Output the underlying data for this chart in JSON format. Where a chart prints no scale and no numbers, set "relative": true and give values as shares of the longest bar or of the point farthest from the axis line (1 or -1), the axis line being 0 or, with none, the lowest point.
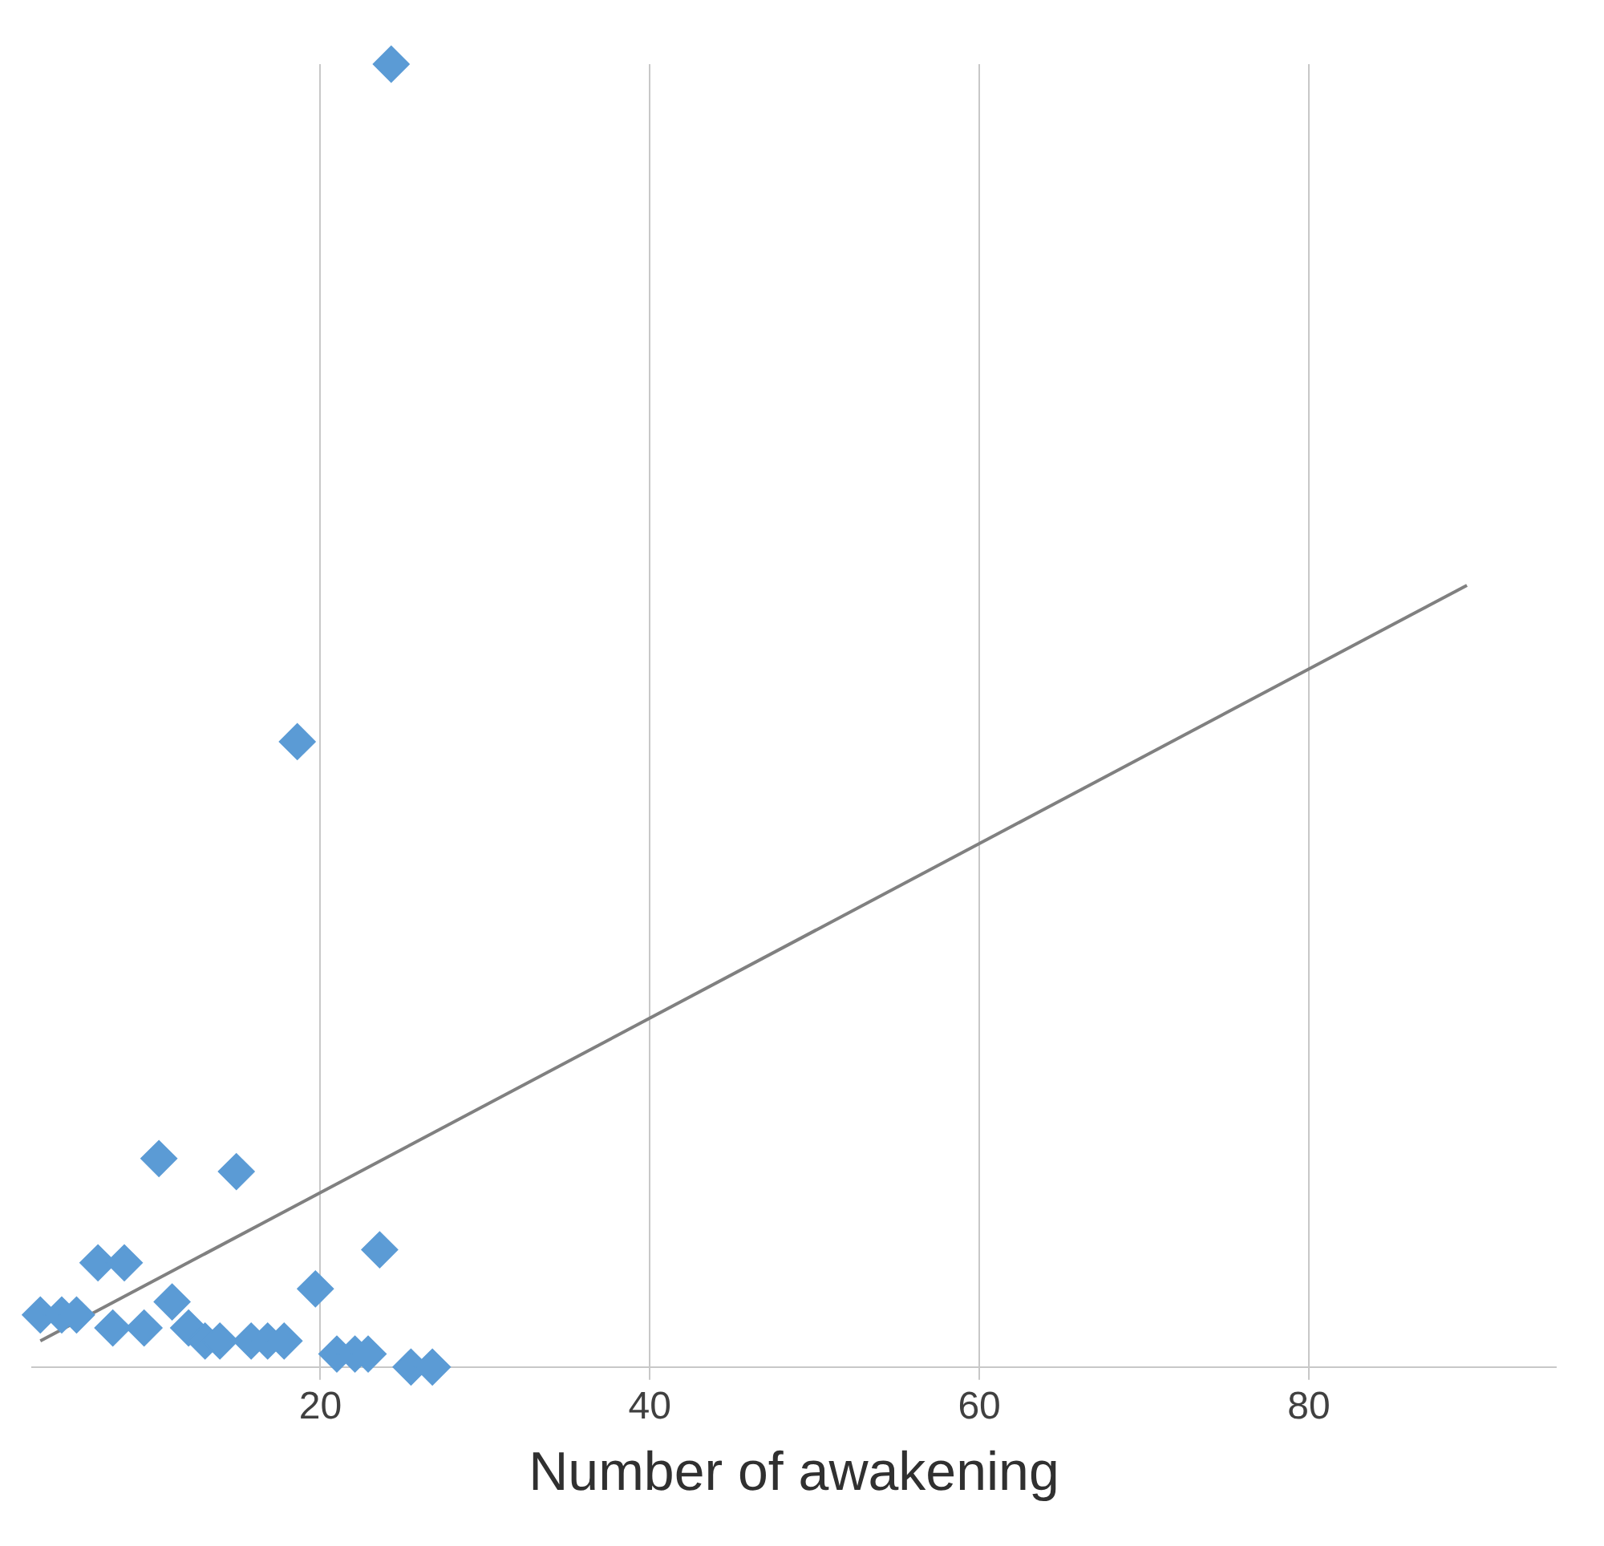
{
  "chart_data": {
    "type": "scatter",
    "xlabel": "Number of awakening",
    "relative": true,
    "marker": "diamond",
    "grid": "x",
    "xlim": [
      2.5,
      95
    ],
    "xticks": [
      20,
      40,
      60,
      80
    ],
    "series": [
      {
        "color": "#5b9bd5",
        "x": [
          3.0,
          4.3,
          5.2,
          6.5,
          7.4,
          8.1,
          9.3,
          10.2,
          11.0,
          12.0,
          13.0,
          13.9,
          14.9,
          15.8,
          16.8,
          17.8,
          18.6,
          19.7,
          21.0,
          22.1,
          22.9,
          23.6,
          24.3,
          25.5,
          26.8
        ],
        "values": [
          0.04,
          0.04,
          0.04,
          0.08,
          0.03,
          0.08,
          0.03,
          0.16,
          0.05,
          0.03,
          0.02,
          0.02,
          0.15,
          0.02,
          0.02,
          0.02,
          0.48,
          0.06,
          0.01,
          0.01,
          0.01,
          0.09,
          1.0,
          0,
          0
        ]
      },
      {
        "type": "line",
        "color": "#808080",
        "marker": "none",
        "x": [
          3.0,
          89.6
        ],
        "values": [
          0.02,
          0.6
        ]
      }
    ]
  }
}
